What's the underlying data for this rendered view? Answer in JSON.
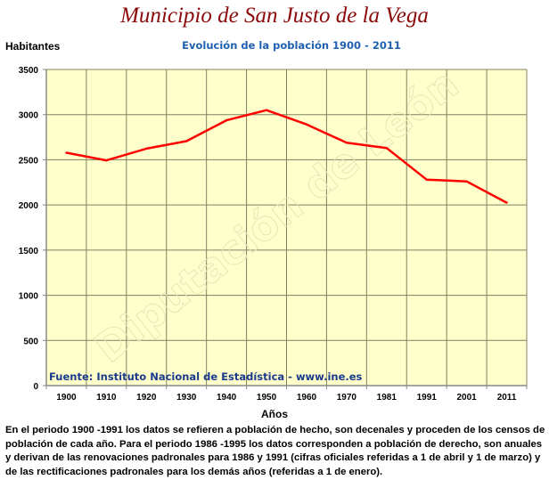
{
  "header": {
    "title": "Municipio de San Justo de la Vega"
  },
  "footer_note": "En el periodo 1900 -1991 los datos se refieren a población de hecho, son decenales y proceden de los censos de población de cada año. Para el periodo 1986 -1995 los datos corresponden a población de derecho, son anuales y derivan de las renovaciones padronales para 1986 y 1991 (cifras oficiales referidas a 1 de abril y 1 de marzo) y de las rectificaciones padronales para los demás años (referidas a 1 de enero).",
  "colors": {
    "title": "#8b0a0a",
    "subtitle": "#1f5fb0",
    "plot_background": "#ffffcc",
    "gridline": "#808060",
    "series_line": "#ff0000",
    "source_text": "#1a3a8c"
  },
  "chart_data": {
    "type": "line",
    "title": "Evolución de la población 1900 - 2011",
    "xlabel": "Años",
    "ylabel": "Habitantes",
    "categories": [
      "1900",
      "1910",
      "1920",
      "1930",
      "1940",
      "1950",
      "1960",
      "1970",
      "1981",
      "1991",
      "2001",
      "2011"
    ],
    "series": [
      {
        "name": "Habitantes",
        "values": [
          2578,
          2493,
          2624,
          2706,
          2937,
          3049,
          2892,
          2689,
          2630,
          2280,
          2261,
          2025
        ]
      }
    ],
    "ylim": [
      0,
      3500
    ],
    "yticks": [
      0,
      500,
      1000,
      1500,
      2000,
      2500,
      3000,
      3500
    ],
    "grid": true,
    "legend": "none",
    "source_annotation": "Fuente: Instituto Nacional de Estadística - www.ine.es",
    "watermark": "Diputación de León"
  }
}
